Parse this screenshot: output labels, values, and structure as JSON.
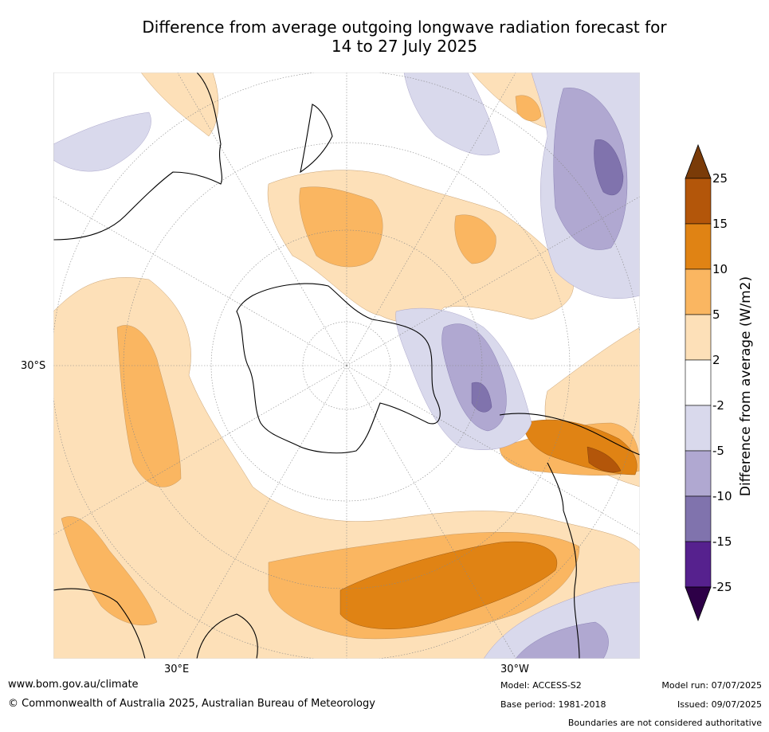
{
  "title_line1": "Difference from average outgoing longwave radiation forecast for",
  "title_line2": "14 to 27 July 2025",
  "lat_label": "30°S",
  "lon_labels": [
    "30°E",
    "30°W"
  ],
  "colorbar": {
    "title": "Difference from average (W/m2)",
    "ticks": [
      "25",
      "15",
      "10",
      "5",
      "2",
      "-2",
      "-5",
      "-10",
      "-15",
      "-25"
    ],
    "colors": [
      "#7a3b08",
      "#b3560a",
      "#e08314",
      "#fab661",
      "#fde0b8",
      "#ffffff",
      "#d9d9ec",
      "#b0a8d1",
      "#8073ad",
      "#56218e",
      "#2d0047"
    ]
  },
  "footer": {
    "website": "www.bom.gov.au/climate",
    "copyright": "© Commonwealth of Australia 2025, Australian Bureau of Meteorology",
    "model": "Model: ACCESS-S2",
    "base_period": "Base period: 1981-2018",
    "model_run": "Model run: 07/07/2025",
    "issued": "Issued: 09/07/2025",
    "disclaimer": "Boundaries are not considered authoritative"
  }
}
